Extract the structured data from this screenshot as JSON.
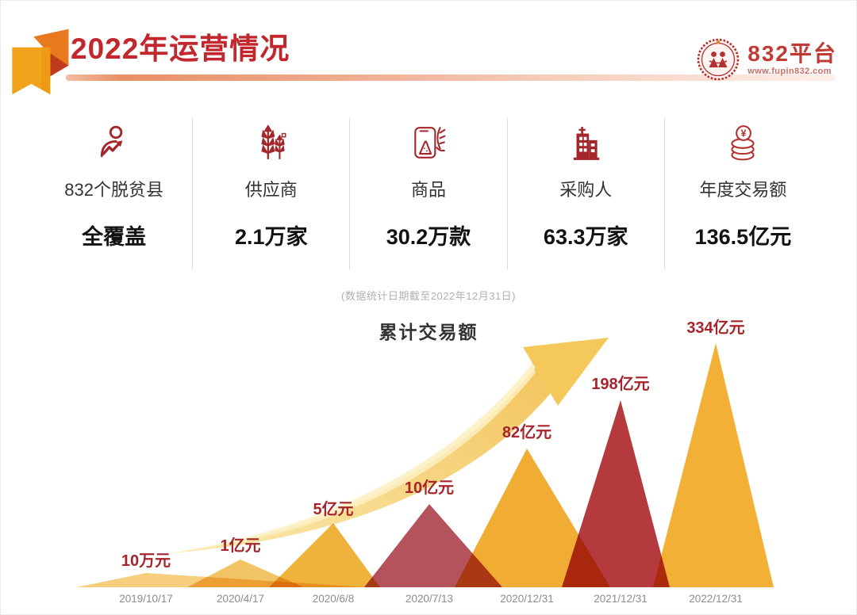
{
  "header": {
    "title": "2022年运营情况",
    "logo_name": "832平台",
    "logo_url": "www.fupin832.com"
  },
  "stats": {
    "items": [
      {
        "icon": "person-trend-icon",
        "label": "832个脱贫县",
        "value": "全覆盖"
      },
      {
        "icon": "wheat-icon",
        "label": "供应商",
        "value": "2.1万家"
      },
      {
        "icon": "product-bag-icon",
        "label": "商品",
        "value": "30.2万款"
      },
      {
        "icon": "building-icon",
        "label": "采购人",
        "value": "63.3万家"
      },
      {
        "icon": "coins-yuan-icon",
        "label": "年度交易额",
        "value": "136.5亿元"
      }
    ]
  },
  "chart_note": "(数据统计日期截至2022年12月31日)",
  "chart_data": {
    "type": "area",
    "title": "累计交易额",
    "x": [
      "2019/10/17",
      "2020/4/17",
      "2020/6/8",
      "2020/7/13",
      "2020/12/31",
      "2021/12/31",
      "2022/12/31"
    ],
    "labels": [
      "10万元",
      "1亿元",
      "5亿元",
      "10亿元",
      "82亿元",
      "198亿元",
      "334亿元"
    ],
    "values_in_yi_yuan": [
      0.001,
      1,
      5,
      10,
      82,
      198,
      334
    ],
    "peak_colors": [
      "#f6ce7e",
      "#f3c466",
      "#efb23c",
      "#b5535c",
      "#f0ac33",
      "#b43a3d",
      "#f2b136"
    ],
    "label_color": "#a6252c",
    "date_color": "#8c8c8c",
    "annotation": "上升趋势箭头",
    "legend": "none",
    "grid": false
  },
  "icons": {
    "yuan_symbol": "¥"
  },
  "colors": {
    "accent_red": "#c2272d",
    "icon_red": "#a3262b",
    "arrow_gold": "#f3c75b"
  }
}
